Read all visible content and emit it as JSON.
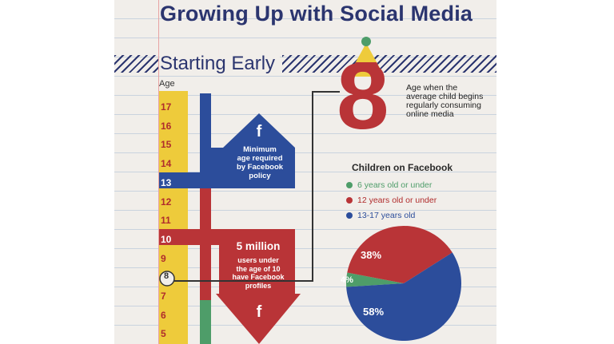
{
  "title": "Growing Up with Social Media",
  "section_title": "Starting Early",
  "colors": {
    "navy": "#2b356f",
    "red": "#b93437",
    "blue": "#2c4d9b",
    "yellow": "#eecb3b",
    "green": "#4e9d69",
    "paper": "#f1eeea"
  },
  "age_scale": {
    "axis_label": "Age",
    "ticks": [
      "17",
      "16",
      "15",
      "14",
      "13",
      "12",
      "11",
      "10",
      "9",
      "8",
      "7",
      "6",
      "5"
    ],
    "highlighted": [
      "13",
      "10",
      "8"
    ]
  },
  "facebook_arrow": {
    "icon": "f",
    "text": "Minimum age required by Facebook policy",
    "age": "13"
  },
  "million_arrow": {
    "icon": "f",
    "headline": "5 million",
    "text": "users under the age of 10 have Facebook profiles"
  },
  "big_number": {
    "value": "8",
    "caption": "Age when the average child begins regularly consuming online media"
  },
  "chart_data": {
    "type": "pie",
    "title": "Children on Facebook",
    "categories": [
      "6 years old or under",
      "12 years old or under",
      "13-17 years old"
    ],
    "values": [
      4,
      38,
      58
    ],
    "labels": [
      "4%",
      "38%",
      "58%"
    ],
    "colors": [
      "#4e9d69",
      "#b93437",
      "#2c4d9b"
    ]
  }
}
